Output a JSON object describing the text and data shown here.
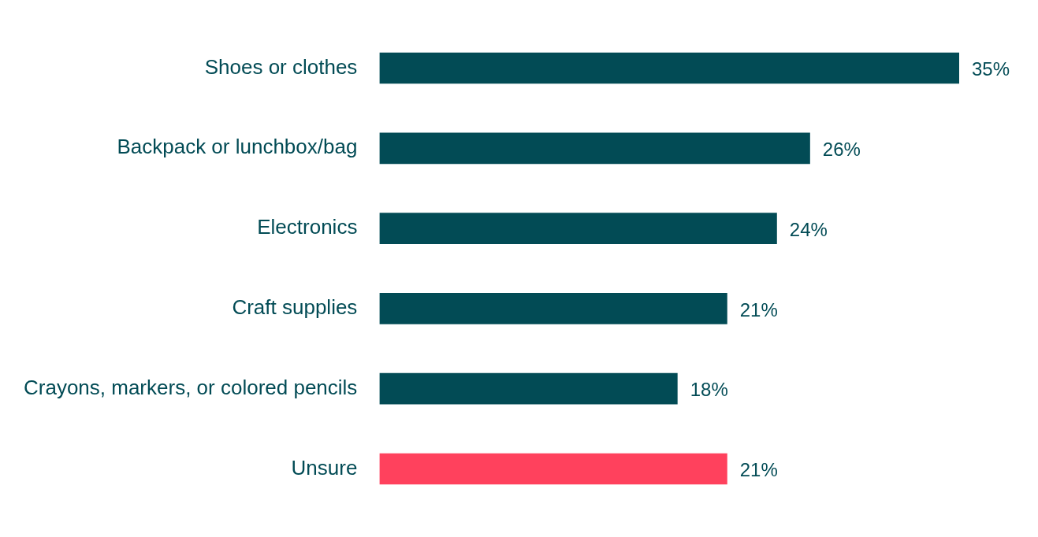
{
  "chart_data": {
    "type": "bar",
    "orientation": "horizontal",
    "categories": [
      "Shoes or clothes",
      "Backpack or lunchbox/bag",
      "Electronics",
      "Craft supplies",
      "Crayons, markers, or colored pencils",
      "Unsure"
    ],
    "values": [
      35,
      26,
      24,
      21,
      18,
      21
    ],
    "colors": [
      "#024b55",
      "#024b55",
      "#024b55",
      "#024b55",
      "#024b55",
      "#ff415d"
    ],
    "value_labels": [
      "35%",
      "26%",
      "24%",
      "21%",
      "18%",
      "21%"
    ],
    "legend": false
  }
}
